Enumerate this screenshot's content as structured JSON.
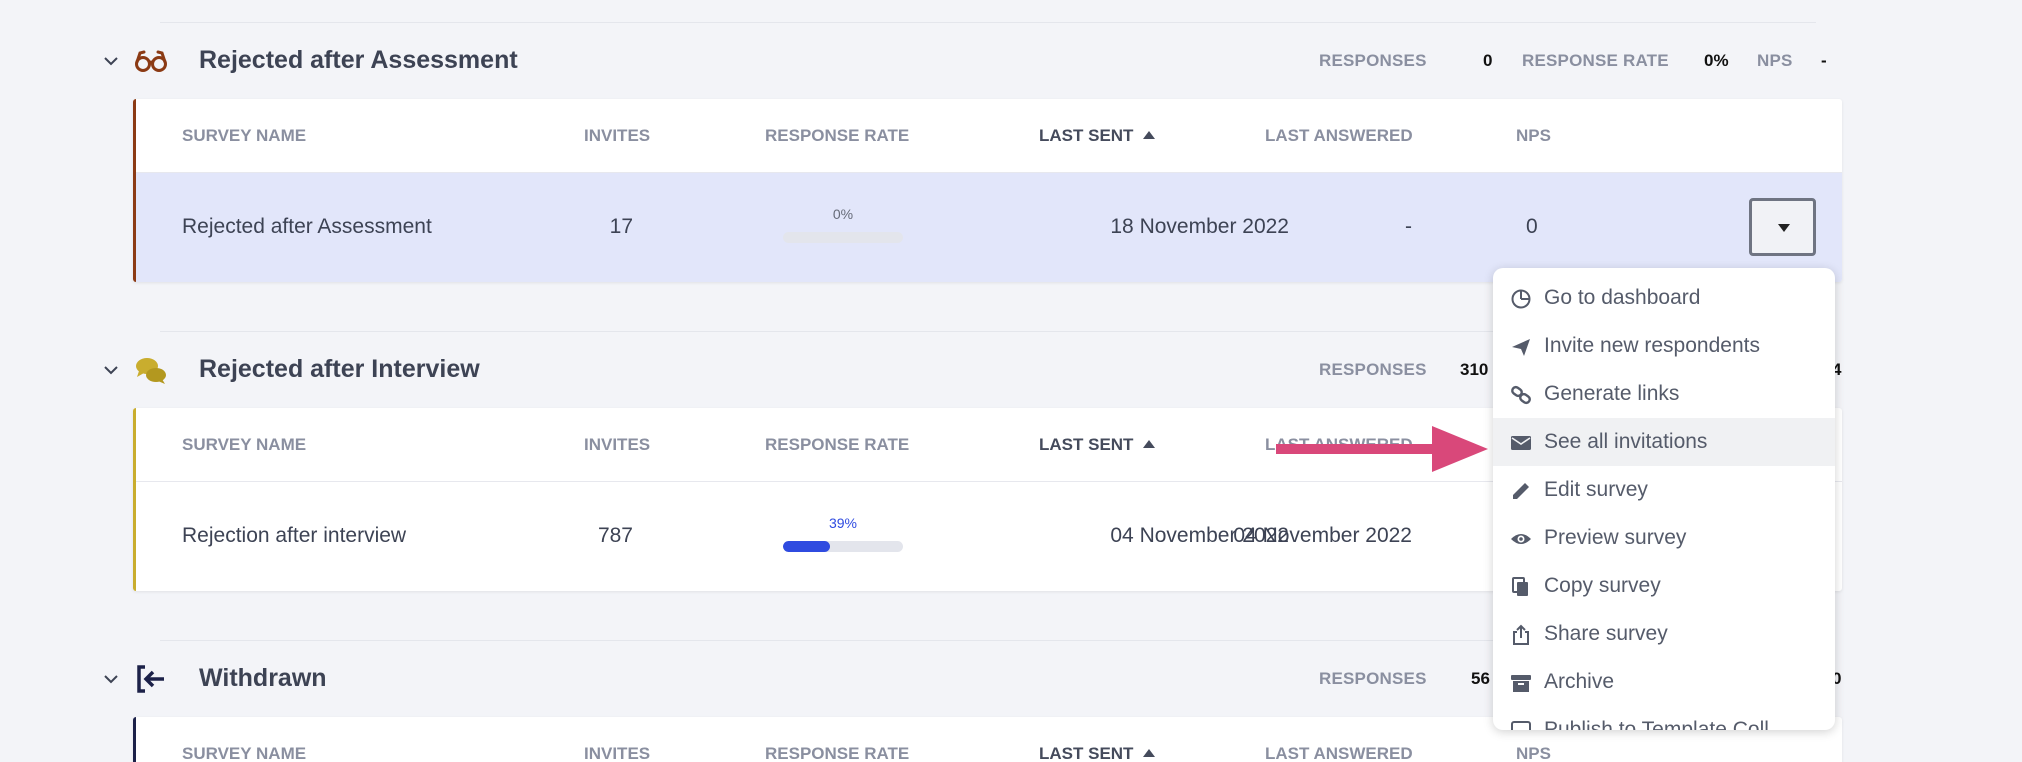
{
  "columns": {
    "survey_name": "SURVEY NAME",
    "invites": "INVITES",
    "response_rate": "RESPONSE RATE",
    "last_sent": "LAST SENT",
    "last_answered": "LAST ANSWERED",
    "nps": "NPS"
  },
  "stat_labels": {
    "responses": "RESPONSES",
    "response_rate": "RESPONSE RATE",
    "nps": "NPS"
  },
  "sections": [
    {
      "title": "Rejected after Assessment",
      "icon": "glasses-icon",
      "accent_color": "#8b3a14",
      "stats": {
        "responses": "0",
        "response_rate": "0%",
        "nps": "-"
      },
      "rows": [
        {
          "name": "Rejected after Assessment",
          "invites": "17",
          "rate_text": "0%",
          "rate": 0,
          "last_sent": "18 November 2022",
          "last_answered": "-",
          "nps": "0"
        }
      ]
    },
    {
      "title": "Rejected after Interview",
      "icon": "chat-bubbles-icon",
      "accent_color": "#c9ad2e",
      "stats": {
        "responses": "310",
        "nps_partial": "4"
      },
      "rows": [
        {
          "name": "Rejection after interview",
          "invites": "787",
          "rate_text": "39%",
          "rate": 0.39,
          "last_sent": "04 November 2022",
          "last_answered": "04 November 2022"
        }
      ]
    },
    {
      "title": "Withdrawn",
      "icon": "exit-icon",
      "accent_color": "#1c2149",
      "stats": {
        "responses": "56",
        "nps_partial": "0"
      }
    }
  ],
  "menu": {
    "items": [
      {
        "label": "Go to dashboard",
        "icon": "dashboard-icon"
      },
      {
        "label": "Invite new respondents",
        "icon": "send-icon"
      },
      {
        "label": "Generate links",
        "icon": "link-icon"
      },
      {
        "label": "See all invitations",
        "icon": "envelope-icon",
        "highlighted": true
      },
      {
        "label": "Edit survey",
        "icon": "pencil-icon"
      },
      {
        "label": "Preview survey",
        "icon": "eye-icon"
      },
      {
        "label": "Copy survey",
        "icon": "copy-icon"
      },
      {
        "label": "Share survey",
        "icon": "share-icon"
      },
      {
        "label": "Archive",
        "icon": "archive-icon"
      },
      {
        "label": "Publish to Template Coll...",
        "icon": "template-icon"
      }
    ]
  },
  "annotation": {
    "arrow_color": "#d9487a"
  }
}
